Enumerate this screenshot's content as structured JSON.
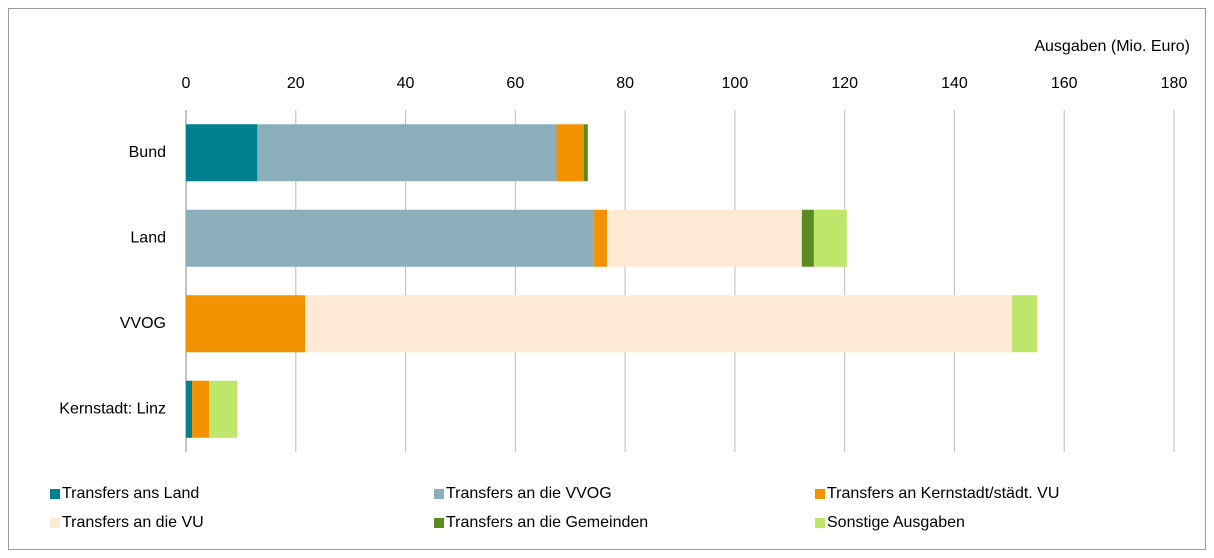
{
  "chart_data": {
    "type": "stacked-barh",
    "x_label": "Ausgaben (Mio. Euro)",
    "categories": [
      "Bund",
      "Land",
      "VVOG",
      "Kernstadt: Linz"
    ],
    "xlim": [
      0,
      180
    ],
    "xticks": [
      0,
      20,
      40,
      60,
      80,
      100,
      120,
      140,
      160,
      180
    ],
    "grid": true,
    "series": [
      {
        "name": "Transfers ans Land",
        "color": "#00808f",
        "values": [
          13,
          0,
          0,
          1.1
        ]
      },
      {
        "name": "Transfers an die VVOG",
        "color": "#8aafba",
        "values": [
          54.5,
          74.3,
          0,
          0
        ]
      },
      {
        "name": "Transfers an Kernstadt/städt. VU",
        "color": "#f39200",
        "values": [
          5,
          2.4,
          21.7,
          3.1
        ]
      },
      {
        "name": "Transfers an die VU",
        "color": "#fde9d4",
        "values": [
          0,
          35.5,
          128.8,
          0
        ]
      },
      {
        "name": "Transfers an die Gemeinden",
        "color": "#5b8a1e",
        "values": [
          0.7,
          2.2,
          0,
          0
        ]
      },
      {
        "name": "Sonstige Ausgaben",
        "color": "#bde66a",
        "values": [
          0,
          6,
          4.6,
          5.1
        ]
      }
    ]
  }
}
